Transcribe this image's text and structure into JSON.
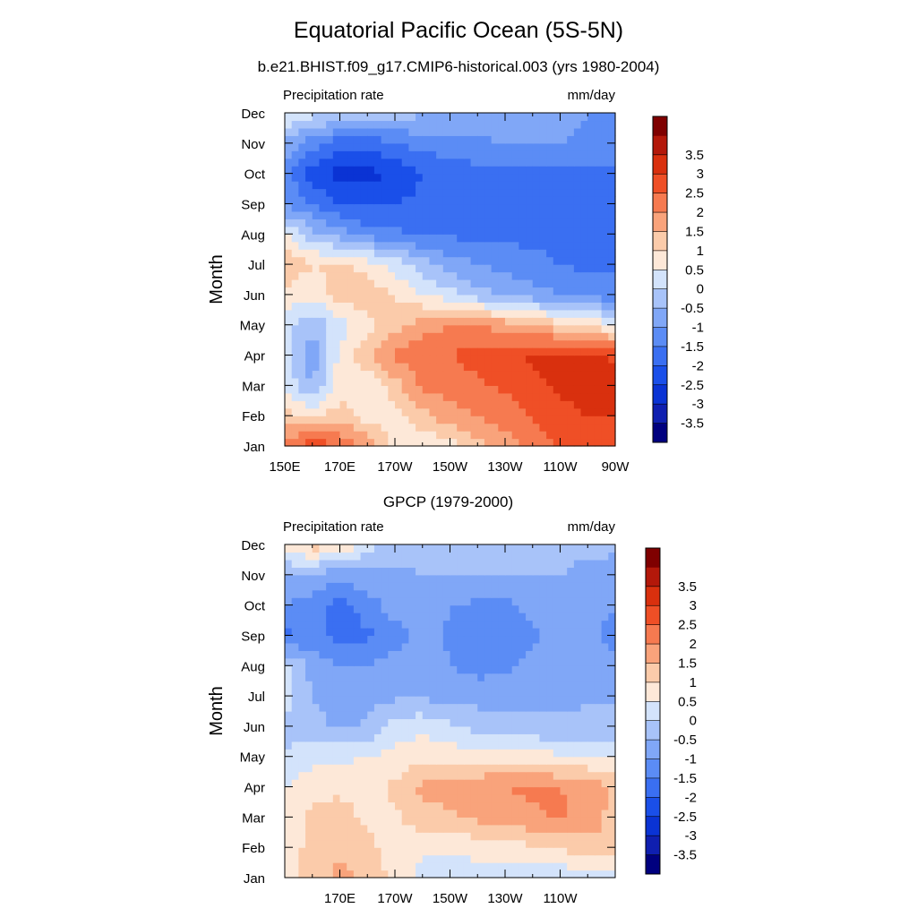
{
  "title": "Equatorial Pacific Ocean (5S-5N)",
  "subtitle": "b.e21.BHIST.f09_g17.CMIP6-historical.003 (yrs 1980-2004)",
  "colors": [
    "#00007f",
    "#0f1fb0",
    "#0a33d4",
    "#1a4fe9",
    "#3a6ff2",
    "#5b8cf5",
    "#80a7f7",
    "#a8c3f9",
    "#d3e3fb",
    "#fde8d8",
    "#fbcbaa",
    "#f9a37b",
    "#f67a50",
    "#ef4f26",
    "#d9300e",
    "#b3180a",
    "#7f0000"
  ],
  "chart_data": [
    {
      "type": "heatmap",
      "plot_title": "",
      "left_label": "Precipitation rate",
      "right_label": "mm/day",
      "ylabel": "Month",
      "xlabel": "",
      "x_range": [
        150,
        270
      ],
      "x_ticks": [
        "150E",
        "170E",
        "170W",
        "150W",
        "130W",
        "110W",
        "90W"
      ],
      "y_ticks": [
        "Jan",
        "Feb",
        "Mar",
        "Apr",
        "May",
        "Jun",
        "Jul",
        "Aug",
        "Sep",
        "Oct",
        "Nov",
        "Dec"
      ],
      "levels": [
        -4,
        -3.5,
        -3,
        -2.5,
        -2,
        -1.5,
        -1,
        -0.5,
        0,
        0.5,
        1,
        1.5,
        2,
        2.5,
        3,
        3.5,
        4
      ],
      "colorbar_labels": [
        "3.5",
        "3",
        "2.5",
        "2",
        "1.5",
        "1",
        "0.5",
        "0",
        "-0.5",
        "-1",
        "-1.5",
        "-2",
        "-2.5",
        "-3",
        "-3.5"
      ],
      "x_lon": [
        150,
        160,
        170,
        180,
        190,
        200,
        210,
        220,
        230,
        240,
        250,
        260,
        270
      ],
      "z": [
        [
          2.2,
          2.8,
          2.6,
          1.8,
          0.8,
          0.6,
          0.8,
          1.3,
          1.8,
          2.2,
          2.6,
          2.8,
          3.0
        ],
        [
          1.2,
          1.0,
          1.2,
          0.8,
          0.7,
          1.3,
          1.8,
          2.0,
          2.2,
          2.5,
          2.8,
          3.0,
          3.0
        ],
        [
          0.4,
          -0.6,
          0.8,
          0.4,
          1.3,
          2.1,
          2.2,
          2.4,
          2.6,
          2.9,
          3.1,
          3.2,
          3.2
        ],
        [
          0.3,
          -0.8,
          0.6,
          1.5,
          2.1,
          2.4,
          2.5,
          2.7,
          2.9,
          3.1,
          3.2,
          3.1,
          2.9
        ],
        [
          0.2,
          -0.4,
          0.3,
          0.8,
          1.3,
          1.8,
          2.0,
          2.0,
          1.8,
          1.5,
          1.2,
          0.9,
          0.6
        ],
        [
          0.8,
          0.6,
          1.3,
          1.3,
          1.0,
          0.5,
          0.2,
          -0.3,
          -0.6,
          -0.8,
          -1.0,
          -1.2,
          -1.3
        ],
        [
          1.5,
          1.0,
          1.2,
          0.8,
          0.3,
          -0.3,
          -0.7,
          -1.0,
          -1.2,
          -1.3,
          -1.5,
          -1.6,
          -1.6
        ],
        [
          0.5,
          -0.3,
          -0.8,
          -1.2,
          -1.4,
          -1.5,
          -1.6,
          -1.6,
          -1.6,
          -1.7,
          -1.7,
          -1.7,
          -1.7
        ],
        [
          -1.0,
          -1.5,
          -2.0,
          -2.1,
          -2.0,
          -1.9,
          -1.8,
          -1.8,
          -1.7,
          -1.7,
          -1.7,
          -1.7,
          -1.7
        ],
        [
          -1.2,
          -2.3,
          -2.7,
          -2.7,
          -2.4,
          -2.0,
          -1.8,
          -1.7,
          -1.7,
          -1.7,
          -1.7,
          -1.6,
          -1.6
        ],
        [
          -0.6,
          -1.3,
          -1.8,
          -1.8,
          -1.5,
          -1.3,
          -1.2,
          -1.1,
          -1.0,
          -1.0,
          -1.0,
          -1.1,
          -1.1
        ],
        [
          0.6,
          0.2,
          0.0,
          -0.2,
          -0.3,
          -0.4,
          -0.5,
          -0.6,
          -0.7,
          -0.8,
          -0.9,
          -1.0,
          -1.0
        ]
      ]
    },
    {
      "type": "heatmap",
      "plot_title": "GPCP (1979-2000)",
      "left_label": "Precipitation rate",
      "right_label": "mm/day",
      "ylabel": "Month",
      "xlabel": "",
      "x_range": [
        150,
        270
      ],
      "x_ticks": [
        "170E",
        "170W",
        "150W",
        "130W",
        "110W"
      ],
      "y_ticks": [
        "Jan",
        "Feb",
        "Mar",
        "Apr",
        "May",
        "Jun",
        "Jul",
        "Aug",
        "Sep",
        "Oct",
        "Nov",
        "Dec"
      ],
      "levels": [
        -4,
        -3.5,
        -3,
        -2.5,
        -2,
        -1.5,
        -1,
        -0.5,
        0,
        0.5,
        1,
        1.5,
        2,
        2.5,
        3,
        3.5,
        4
      ],
      "colorbar_labels": [
        "3.5",
        "3",
        "2.5",
        "2",
        "1.5",
        "1",
        "0.5",
        "0",
        "-0.5",
        "-1",
        "-1.5",
        "-2",
        "-2.5",
        "-3",
        "-3.5"
      ],
      "x_lon": [
        150,
        160,
        170,
        180,
        190,
        200,
        210,
        220,
        230,
        240,
        250,
        260,
        270
      ],
      "z": [
        [
          0.9,
          1.2,
          1.6,
          1.4,
          0.8,
          0.3,
          0.2,
          0.2,
          0.1,
          0.0,
          0.1,
          0.2,
          0.3
        ],
        [
          0.7,
          1.2,
          1.5,
          1.1,
          0.8,
          0.6,
          0.6,
          0.7,
          0.8,
          0.9,
          1.1,
          1.3,
          1.4
        ],
        [
          0.6,
          1.1,
          1.2,
          0.9,
          0.9,
          1.3,
          1.4,
          1.6,
          1.7,
          1.9,
          2.1,
          1.8,
          1.3
        ],
        [
          0.5,
          0.8,
          0.9,
          0.8,
          1.1,
          1.6,
          1.8,
          1.9,
          2.0,
          2.1,
          2.0,
          1.8,
          1.4
        ],
        [
          0.1,
          0.3,
          0.4,
          0.5,
          0.7,
          0.8,
          0.8,
          0.8,
          0.8,
          0.7,
          0.6,
          0.5,
          0.4
        ],
        [
          -0.2,
          -0.3,
          -0.6,
          -0.4,
          0.2,
          0.4,
          0.1,
          -0.2,
          -0.3,
          -0.4,
          -0.4,
          -0.3,
          -0.3
        ],
        [
          0.3,
          -0.5,
          -0.8,
          -0.7,
          -0.6,
          -0.6,
          -0.7,
          -0.7,
          -0.7,
          -0.6,
          -0.6,
          -0.6,
          -0.6
        ],
        [
          0.2,
          -0.7,
          -1.0,
          -1.0,
          -0.8,
          -0.7,
          -1.0,
          -1.2,
          -1.1,
          -0.9,
          -0.6,
          -0.7,
          -0.9
        ],
        [
          -1.7,
          -1.2,
          -1.8,
          -1.6,
          -1.2,
          -0.8,
          -1.1,
          -1.3,
          -1.3,
          -1.1,
          -0.7,
          -0.9,
          -1.2
        ],
        [
          -1.0,
          -1.2,
          -1.8,
          -1.2,
          -0.8,
          -0.7,
          -1.0,
          -1.1,
          -1.1,
          -0.9,
          -0.6,
          -0.8,
          -1.0
        ],
        [
          -0.4,
          -0.7,
          -0.8,
          -0.7,
          -0.6,
          -0.5,
          -0.5,
          -0.5,
          -0.5,
          -0.5,
          -0.5,
          -0.6,
          -0.7
        ],
        [
          0.6,
          1.3,
          1.1,
          0.2,
          -0.2,
          -0.3,
          -0.3,
          -0.3,
          -0.4,
          -0.4,
          -0.4,
          -0.4,
          -0.4
        ]
      ]
    }
  ]
}
